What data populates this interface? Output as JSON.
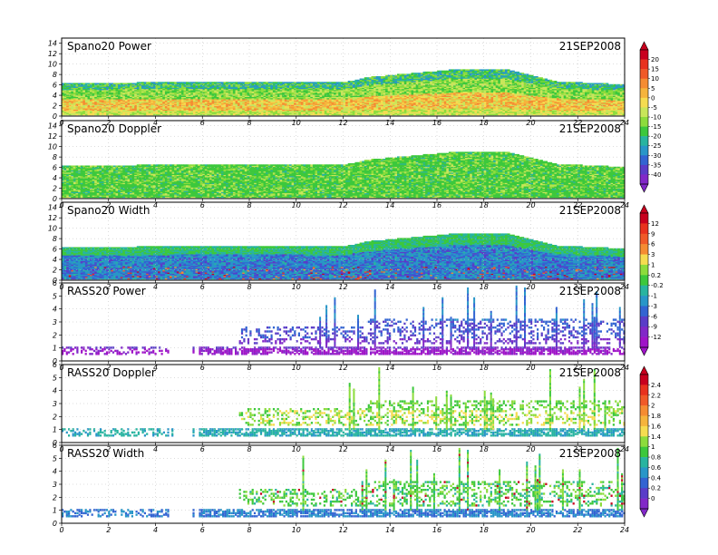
{
  "figure": {
    "date": "21SEP2008"
  },
  "chart_data": [
    {
      "type": "heatmap",
      "title": "Spano20 Power",
      "date_label": "21SEP2008",
      "x_ticks": [
        "0",
        "2",
        "4",
        "6",
        "8",
        "10",
        "12",
        "14",
        "16",
        "18",
        "20",
        "22",
        "24"
      ],
      "y_ticks": [
        "0",
        "2",
        "4",
        "6",
        "8",
        "10",
        "12",
        "14"
      ],
      "xlim": [
        0,
        24
      ],
      "ylim": [
        0,
        15
      ],
      "colorbar_group": 0,
      "grid": true,
      "coverage": [
        [
          0,
          6.2
        ],
        [
          6,
          6.5
        ],
        [
          12,
          6.4
        ],
        [
          13,
          7.4
        ],
        [
          15,
          8.2
        ],
        [
          17,
          9.0
        ],
        [
          19,
          8.8
        ],
        [
          21,
          6.6
        ],
        [
          24,
          6.0
        ]
      ],
      "field": "power",
      "dots": 0
    },
    {
      "type": "heatmap",
      "title": "Spano20 Doppler",
      "date_label": "21SEP2008",
      "x_ticks": [
        "0",
        "2",
        "4",
        "6",
        "8",
        "10",
        "12",
        "14",
        "16",
        "18",
        "20",
        "22",
        "24"
      ],
      "y_ticks": [
        "0",
        "2",
        "4",
        "6",
        "8",
        "10",
        "12",
        "14"
      ],
      "xlim": [
        0,
        24
      ],
      "ylim": [
        0,
        15
      ],
      "colorbar_group": 0,
      "grid": true,
      "coverage": [
        [
          0,
          6.2
        ],
        [
          6,
          6.5
        ],
        [
          12,
          6.4
        ],
        [
          13,
          7.4
        ],
        [
          15,
          8.2
        ],
        [
          17,
          9.0
        ],
        [
          19,
          8.8
        ],
        [
          21,
          6.6
        ],
        [
          24,
          6.0
        ]
      ],
      "field": "doppler",
      "dots": 0
    },
    {
      "type": "heatmap",
      "title": "Spano20 Width",
      "date_label": "21SEP2008",
      "x_ticks": [
        "0",
        "2",
        "4",
        "6",
        "8",
        "10",
        "12",
        "14",
        "16",
        "18",
        "20",
        "22",
        "24"
      ],
      "y_ticks": [
        "0",
        "2",
        "4",
        "6",
        "8",
        "10",
        "12",
        "14"
      ],
      "xlim": [
        0,
        24
      ],
      "ylim": [
        0,
        15
      ],
      "colorbar_group": 1,
      "grid": true,
      "coverage": [
        [
          0,
          6.2
        ],
        [
          6,
          6.5
        ],
        [
          12,
          6.4
        ],
        [
          13,
          7.4
        ],
        [
          15,
          8.2
        ],
        [
          17,
          9.0
        ],
        [
          19,
          8.8
        ],
        [
          21,
          6.6
        ],
        [
          24,
          6.0
        ]
      ],
      "field": "width",
      "dots": 0
    },
    {
      "type": "heatmap",
      "title": "RASS20 Power",
      "date_label": "21SEP2008",
      "x_ticks": [
        "0",
        "2",
        "4",
        "6",
        "8",
        "10",
        "12",
        "14",
        "16",
        "18",
        "20",
        "22",
        "24"
      ],
      "y_ticks": [
        "0",
        "1",
        "2",
        "3",
        "4",
        "5",
        "6"
      ],
      "xlim": [
        0,
        24
      ],
      "ylim": [
        0,
        6
      ],
      "colorbar_group": 1,
      "grid": true,
      "coverage": [],
      "field": "rass_power",
      "dots": 1
    },
    {
      "type": "heatmap",
      "title": "RASS20 Doppler",
      "date_label": "21SEP2008",
      "x_ticks": [
        "0",
        "2",
        "4",
        "6",
        "8",
        "10",
        "12",
        "14",
        "16",
        "18",
        "20",
        "22",
        "24"
      ],
      "y_ticks": [
        "0",
        "1",
        "2",
        "3",
        "4",
        "5",
        "6"
      ],
      "xlim": [
        0,
        24
      ],
      "ylim": [
        0,
        6
      ],
      "colorbar_group": 2,
      "grid": true,
      "coverage": [],
      "field": "rass_doppler",
      "dots": 1
    },
    {
      "type": "heatmap",
      "title": "RASS20 Width",
      "date_label": "21SEP2008",
      "x_ticks": [
        "0",
        "2",
        "4",
        "6",
        "8",
        "10",
        "12",
        "14",
        "16",
        "18",
        "20",
        "22",
        "24"
      ],
      "y_ticks": [
        "0",
        "1",
        "2",
        "3",
        "4",
        "5",
        "6"
      ],
      "xlim": [
        0,
        24
      ],
      "ylim": [
        0,
        6
      ],
      "colorbar_group": 2,
      "grid": true,
      "coverage": [],
      "field": "rass_width",
      "dots": 1
    }
  ],
  "colorbars": [
    {
      "labels": [
        "20",
        "15",
        "10",
        "5",
        "0",
        "-5",
        "-10",
        "-15",
        "-20",
        "-25",
        "-30",
        "-35",
        "-40"
      ],
      "colors": [
        "#c8001e",
        "#e8321e",
        "#f05a28",
        "#f58c32",
        "#f5b43c",
        "#f5dc50",
        "#c8e65a",
        "#8cdc3c",
        "#3cc83c",
        "#28b4a0",
        "#2896c8",
        "#3264d2",
        "#5a3cc8",
        "#8228c8"
      ]
    },
    {
      "labels": [
        "12",
        "9",
        "6",
        "3",
        "1",
        "0.2",
        "-0.2",
        "-1",
        "-3",
        "-6",
        "-9",
        "-12"
      ],
      "colors": [
        "#c8001e",
        "#e8321e",
        "#f05a28",
        "#f58c32",
        "#f5dc50",
        "#8cdc3c",
        "#3cc83c",
        "#28b4a0",
        "#2896c8",
        "#3264d2",
        "#5a3cc8",
        "#8228c8",
        "#a014c8"
      ]
    },
    {
      "labels": [
        "2.4",
        "2.2",
        "2",
        "1.8",
        "1.6",
        "1.4",
        "1",
        "0.8",
        "0.6",
        "0.4",
        "0.2",
        "0"
      ],
      "colors": [
        "#c8001e",
        "#e8321e",
        "#f05a28",
        "#f58c32",
        "#f5b43c",
        "#f5dc50",
        "#8cdc3c",
        "#3cc83c",
        "#28b4a0",
        "#2896c8",
        "#3264d2",
        "#5a3cc8",
        "#8228c8"
      ]
    }
  ]
}
